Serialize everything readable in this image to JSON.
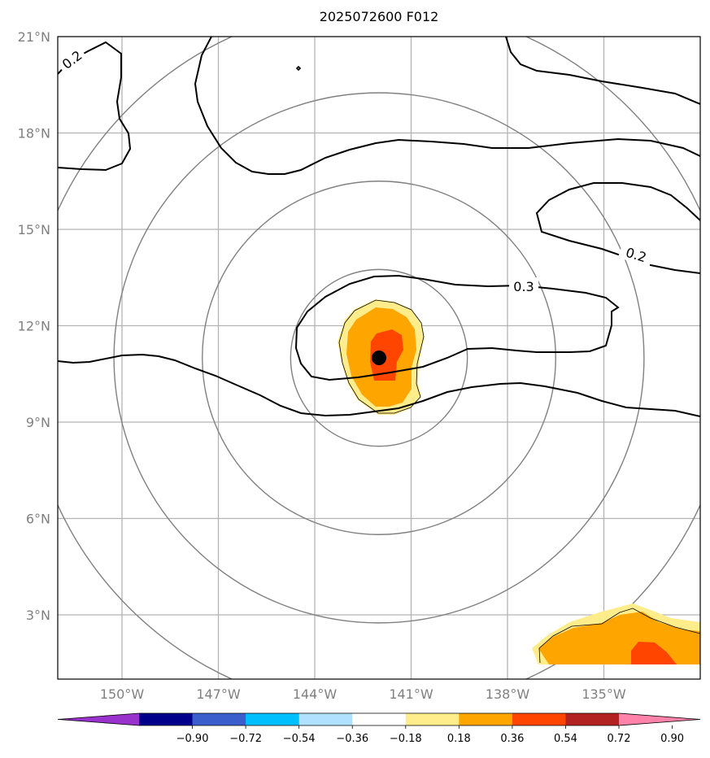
{
  "title": "2025072600 F012",
  "map": {
    "lon_range": [
      -152,
      -132
    ],
    "lat_range": [
      1,
      21
    ],
    "lat_ticks": [
      {
        "value": 3,
        "label": "3°N"
      },
      {
        "value": 6,
        "label": "6°N"
      },
      {
        "value": 9,
        "label": "9°N"
      },
      {
        "value": 12,
        "label": "12°N"
      },
      {
        "value": 15,
        "label": "15°N"
      },
      {
        "value": 18,
        "label": "18°N"
      },
      {
        "value": 21,
        "label": "21°N"
      }
    ],
    "lon_ticks": [
      {
        "value": -150,
        "label": "150°W"
      },
      {
        "value": -147,
        "label": "147°W"
      },
      {
        "value": -144,
        "label": "144°W"
      },
      {
        "value": -141,
        "label": "141°W"
      },
      {
        "value": -138,
        "label": "138°W"
      },
      {
        "value": -135,
        "label": "135°W"
      }
    ],
    "grid": true,
    "storm_center": {
      "lon": -142.0,
      "lat": 11.0
    },
    "range_rings_deg": [
      2.75,
      5.5,
      8.25,
      11.0
    ],
    "contour_labels": [
      "0.2",
      "0.3",
      "0.2"
    ]
  },
  "colorbar": {
    "ticks": [
      "−0.90",
      "−0.72",
      "−0.54",
      "−0.36",
      "−0.18",
      "0.18",
      "0.36",
      "0.54",
      "0.72",
      "0.90"
    ],
    "colors": [
      "#9932cc",
      "#00008b",
      "#3a5fcd",
      "#00bfff",
      "#b0e2ff",
      "#ffffff",
      "#ffec8b",
      "#ffa500",
      "#ff4500",
      "#b22222",
      "#ff82ab"
    ]
  }
}
